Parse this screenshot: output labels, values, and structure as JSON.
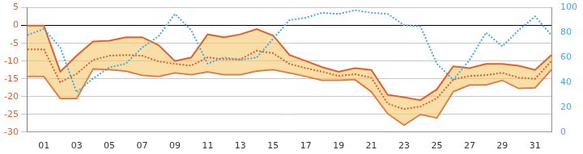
{
  "chart_data": {
    "type": "line",
    "categories": [
      null,
      "01",
      null,
      "03",
      null,
      "05",
      null,
      "07",
      null,
      "09",
      null,
      "11",
      null,
      "13",
      null,
      "15",
      null,
      "17",
      null,
      "19",
      null,
      "21",
      null,
      "23",
      null,
      "25",
      null,
      "27",
      null,
      "29",
      null,
      "31",
      null
    ],
    "series": [
      {
        "type": "area",
        "color": "#e0602c",
        "values": [
          0,
          0,
          -13,
          -8.5,
          -4.5,
          -4.3,
          -3.3,
          -3.3,
          -5.5,
          -10,
          -9,
          -2.5,
          -3.3,
          -2.5,
          -1,
          -2.8,
          -8.3,
          -10,
          -11.7,
          -13,
          -12,
          -12.5,
          -19.5,
          -20.2,
          -21,
          -18,
          -11.5,
          -12,
          -10.8,
          -10.8,
          -11.3,
          -12.5,
          -8.3
        ]
      },
      {
        "type": "area",
        "color": "#e0602c",
        "values": [
          -14.3,
          -14.3,
          -20.5,
          -20.5,
          -12.2,
          -12.4,
          -12.8,
          -14,
          -14.3,
          -13.3,
          -13.8,
          -13,
          -13.8,
          -13.8,
          -12.8,
          -12.4,
          -13.3,
          -14.3,
          -15.4,
          -15.4,
          -15.2,
          -18.6,
          -24.8,
          -28,
          -25,
          -26,
          -18.6,
          -16.7,
          -16.7,
          -15.4,
          -17.7,
          -17.5,
          -12.4
        ]
      },
      {
        "type": "line",
        "color": "#e0602c",
        "line_style": "dotted",
        "values": [
          -6.7,
          -6.7,
          -16,
          -13.6,
          -9.7,
          -8.5,
          -8.3,
          -8.5,
          -10.1,
          -10.8,
          -11.3,
          -9,
          -9.5,
          -9.5,
          -7.1,
          -7.8,
          -10.8,
          -12,
          -13,
          -14.2,
          -13.7,
          -14.7,
          -22,
          -23.5,
          -22.8,
          -20.5,
          -15.2,
          -14.2,
          -14,
          -13.3,
          -14.7,
          -15,
          -10
        ]
      },
      {
        "type": "line",
        "color": "#4aa8e0",
        "line_style": "dotted",
        "axis": "y2",
        "values": [
          78,
          83,
          68,
          32,
          43,
          52,
          55,
          68,
          77,
          95,
          82,
          55,
          60,
          58,
          60,
          75,
          90,
          92,
          96,
          95,
          98,
          96,
          95,
          86,
          85,
          55,
          42,
          58,
          80,
          69,
          82,
          93,
          78
        ]
      }
    ],
    "ylim": [
      -30,
      5
    ],
    "yticks": [
      -30,
      -25,
      -20,
      -15,
      -10,
      -5,
      0,
      5
    ],
    "y2lim": [
      0,
      100
    ],
    "y2ticks": [
      0,
      20,
      40,
      60,
      80,
      100
    ],
    "grid": true,
    "legend": "none"
  }
}
